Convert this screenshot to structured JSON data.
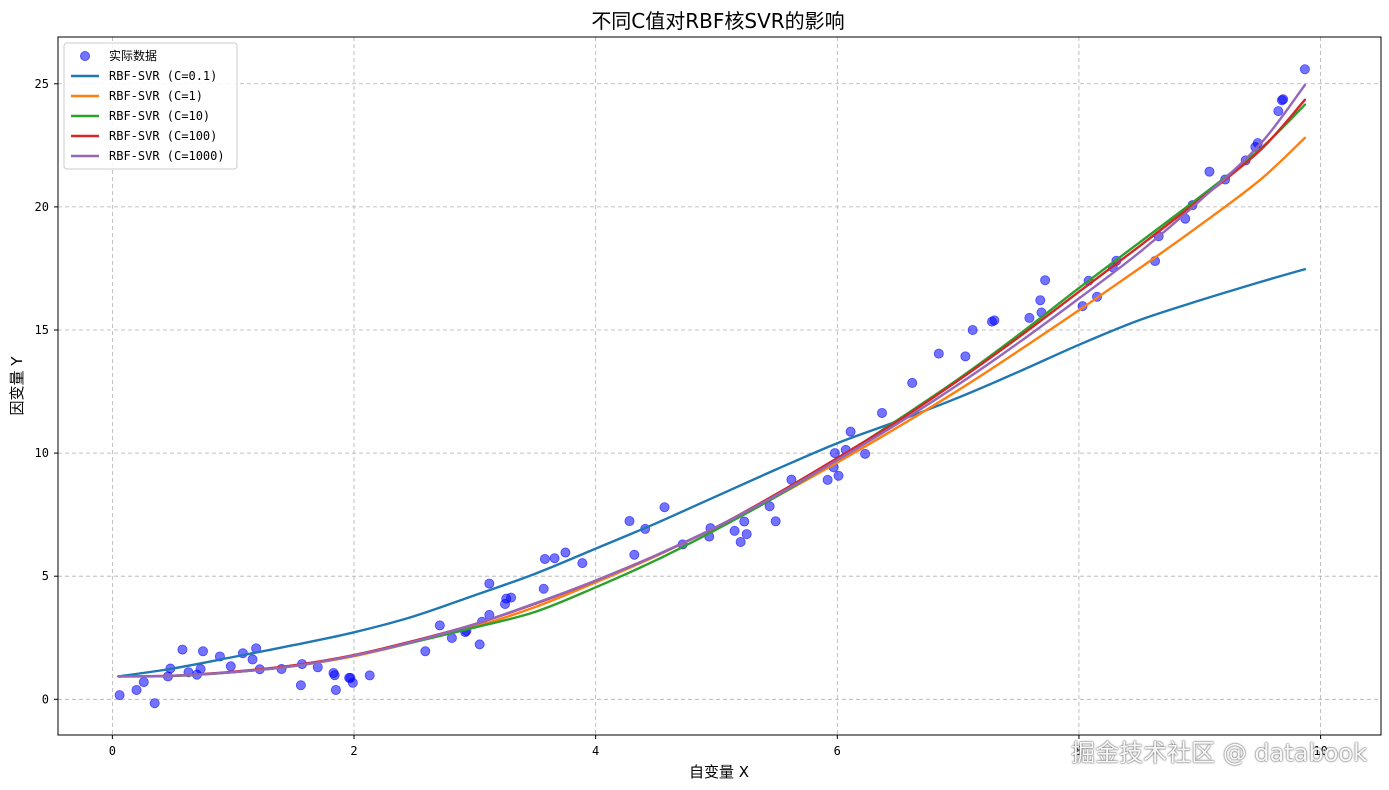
{
  "watermark": "掘金技术社区 @ databook",
  "chart_data": {
    "type": "scatter",
    "title": "不同C值对RBF核SVR的影响",
    "xlabel": "自变量 X",
    "ylabel": "因变量 Y",
    "xlim": [
      -0.45,
      10.5
    ],
    "ylim": [
      -1.45,
      26.9
    ],
    "xticks": [
      0,
      2,
      4,
      6,
      8,
      10
    ],
    "yticks": [
      0,
      5,
      10,
      15,
      20,
      25
    ],
    "grid": true,
    "legend_position": "top-left",
    "scatter": {
      "name": "实际数据",
      "color": "#0000ff",
      "points": [
        [
          0.06,
          0.17
        ],
        [
          0.2,
          0.38
        ],
        [
          0.26,
          0.7
        ],
        [
          0.35,
          -0.16
        ],
        [
          0.46,
          0.93
        ],
        [
          0.48,
          1.25
        ],
        [
          0.58,
          2.02
        ],
        [
          0.63,
          1.1
        ],
        [
          0.7,
          1.0
        ],
        [
          0.73,
          1.23
        ],
        [
          0.75,
          1.95
        ],
        [
          0.89,
          1.74
        ],
        [
          0.98,
          1.34
        ],
        [
          1.08,
          1.87
        ],
        [
          1.16,
          1.62
        ],
        [
          1.19,
          2.07
        ],
        [
          1.22,
          1.22
        ],
        [
          1.4,
          1.23
        ],
        [
          1.56,
          0.57
        ],
        [
          1.57,
          1.43
        ],
        [
          1.7,
          1.3
        ],
        [
          1.83,
          1.07
        ],
        [
          1.84,
          0.98
        ],
        [
          1.85,
          0.38
        ],
        [
          1.96,
          0.87
        ],
        [
          1.97,
          0.87
        ],
        [
          1.99,
          0.67
        ],
        [
          2.13,
          0.97
        ],
        [
          2.59,
          1.95
        ],
        [
          2.71,
          3.0
        ],
        [
          2.81,
          2.49
        ],
        [
          2.92,
          2.73
        ],
        [
          2.93,
          2.78
        ],
        [
          3.04,
          2.23
        ],
        [
          3.06,
          3.15
        ],
        [
          3.12,
          4.7
        ],
        [
          3.12,
          3.43
        ],
        [
          3.25,
          3.87
        ],
        [
          3.26,
          4.09
        ],
        [
          3.3,
          4.13
        ],
        [
          3.57,
          4.49
        ],
        [
          3.58,
          5.7
        ],
        [
          3.66,
          5.73
        ],
        [
          3.75,
          5.96
        ],
        [
          3.89,
          5.53
        ],
        [
          4.28,
          7.24
        ],
        [
          4.32,
          5.87
        ],
        [
          4.41,
          6.92
        ],
        [
          4.57,
          7.8
        ],
        [
          4.72,
          6.29
        ],
        [
          4.94,
          6.61
        ],
        [
          4.95,
          6.95
        ],
        [
          5.15,
          6.84
        ],
        [
          5.2,
          6.39
        ],
        [
          5.23,
          7.22
        ],
        [
          5.25,
          6.71
        ],
        [
          5.44,
          7.84
        ],
        [
          5.49,
          7.23
        ],
        [
          5.62,
          8.92
        ],
        [
          5.92,
          8.91
        ],
        [
          5.97,
          9.42
        ],
        [
          5.98,
          10.0
        ],
        [
          6.01,
          9.08
        ],
        [
          6.07,
          10.13
        ],
        [
          6.11,
          10.87
        ],
        [
          6.23,
          9.97
        ],
        [
          6.37,
          11.63
        ],
        [
          6.62,
          12.85
        ],
        [
          6.84,
          14.04
        ],
        [
          7.06,
          13.93
        ],
        [
          7.12,
          15.0
        ],
        [
          7.28,
          15.34
        ],
        [
          7.3,
          15.39
        ],
        [
          7.59,
          15.49
        ],
        [
          7.68,
          16.21
        ],
        [
          7.69,
          15.71
        ],
        [
          7.72,
          17.02
        ],
        [
          8.03,
          15.97
        ],
        [
          8.08,
          17.0
        ],
        [
          8.15,
          16.35
        ],
        [
          8.28,
          17.55
        ],
        [
          8.31,
          17.81
        ],
        [
          8.63,
          17.8
        ],
        [
          8.66,
          18.81
        ],
        [
          8.88,
          19.52
        ],
        [
          8.94,
          20.07
        ],
        [
          9.08,
          21.43
        ],
        [
          9.21,
          21.11
        ],
        [
          9.38,
          21.89
        ],
        [
          9.46,
          22.43
        ],
        [
          9.48,
          22.59
        ],
        [
          9.65,
          23.89
        ],
        [
          9.68,
          24.33
        ],
        [
          9.69,
          24.37
        ],
        [
          9.87,
          25.59
        ]
      ]
    },
    "series": [
      {
        "name": "RBF-SVR (C=0.1)",
        "color": "#1f77b4",
        "x": [
          0.05,
          0.5,
          1,
          1.5,
          2,
          2.5,
          3,
          3.5,
          4,
          4.5,
          5,
          5.5,
          6,
          6.5,
          7,
          7.5,
          8,
          8.5,
          9,
          9.5,
          9.87
        ],
        "y": [
          0.93,
          1.25,
          1.72,
          2.2,
          2.72,
          3.38,
          4.23,
          5.1,
          6.12,
          7.15,
          8.25,
          9.35,
          10.4,
          11.3,
          12.25,
          13.3,
          14.4,
          15.4,
          16.2,
          16.95,
          17.47
        ]
      },
      {
        "name": "RBF-SVR (C=1)",
        "color": "#ff7f0e",
        "x": [
          0.05,
          0.5,
          1,
          1.5,
          2,
          2.5,
          3,
          3.5,
          4,
          4.5,
          5,
          5.5,
          6,
          6.5,
          7,
          7.5,
          8,
          8.5,
          9,
          9.5,
          9.87
        ],
        "y": [
          0.93,
          0.95,
          1.1,
          1.35,
          1.75,
          2.33,
          2.95,
          3.75,
          4.75,
          5.82,
          7.0,
          8.25,
          9.62,
          11.05,
          12.55,
          14.15,
          15.8,
          17.5,
          19.25,
          21.1,
          22.8
        ]
      },
      {
        "name": "RBF-SVR (C=10)",
        "color": "#2ca02c",
        "x": [
          0.05,
          0.5,
          1,
          1.5,
          2,
          2.5,
          3,
          3.5,
          4,
          4.5,
          5,
          5.5,
          6,
          6.5,
          7,
          7.5,
          8,
          8.5,
          9,
          9.5,
          9.87
        ],
        "y": [
          0.93,
          0.95,
          1.1,
          1.35,
          1.78,
          2.33,
          2.92,
          3.55,
          4.55,
          5.65,
          6.9,
          8.25,
          9.75,
          11.35,
          13.0,
          14.8,
          16.7,
          18.55,
          20.4,
          22.35,
          24.15
        ]
      },
      {
        "name": "RBF-SVR (C=100)",
        "color": "#d62728",
        "x": [
          0.05,
          0.5,
          1,
          1.5,
          2,
          2.5,
          3,
          3.5,
          4,
          4.5,
          5,
          5.5,
          6,
          6.5,
          7,
          7.5,
          8,
          8.5,
          9,
          9.5,
          9.87
        ],
        "y": [
          0.93,
          0.96,
          1.12,
          1.38,
          1.8,
          2.38,
          3.05,
          3.88,
          4.82,
          5.85,
          7.0,
          8.35,
          9.8,
          11.3,
          12.95,
          14.7,
          16.55,
          18.4,
          20.3,
          22.3,
          24.35
        ]
      },
      {
        "name": "RBF-SVR (C=1000)",
        "color": "#9467bd",
        "x": [
          0.05,
          0.5,
          1,
          1.5,
          2,
          2.5,
          3,
          3.5,
          4,
          4.5,
          5,
          5.5,
          6,
          6.5,
          7,
          7.5,
          8,
          8.5,
          9,
          9.5,
          9.87
        ],
        "y": [
          0.93,
          0.96,
          1.1,
          1.35,
          1.78,
          2.35,
          3.05,
          3.9,
          4.82,
          5.85,
          7.0,
          8.3,
          9.72,
          11.2,
          12.78,
          14.48,
          16.28,
          18.15,
          20.25,
          22.55,
          24.95
        ]
      }
    ]
  }
}
